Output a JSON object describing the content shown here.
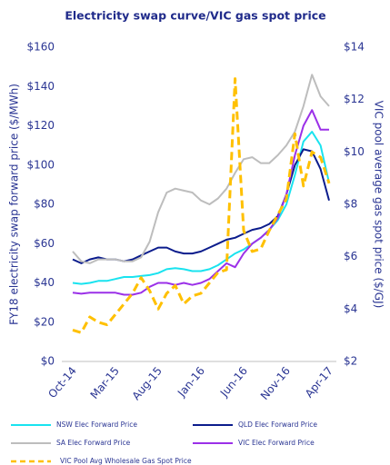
{
  "chart_data": {
    "type": "line",
    "title": "Electricity swap curve/VIC gas spot price",
    "y_label": "FY18 electricity swap forward price ($/MWh)",
    "y2_label": "VIC pool average gas spot price ($/GJ)",
    "categories": [
      "Oct-14",
      null,
      null,
      null,
      null,
      "Mar-15",
      null,
      null,
      null,
      null,
      "Aug-15",
      null,
      null,
      null,
      null,
      "Jan-16",
      null,
      null,
      null,
      null,
      "Jun-16",
      null,
      null,
      null,
      null,
      "Nov-16",
      null,
      null,
      null,
      null,
      "Apr-17"
    ],
    "ylim": [
      0,
      160
    ],
    "yticks": [
      {
        "value": 0,
        "label": "$0"
      },
      {
        "value": 20,
        "label": "$20"
      },
      {
        "value": 40,
        "label": "$40"
      },
      {
        "value": 60,
        "label": "$60"
      },
      {
        "value": 80,
        "label": "$80"
      },
      {
        "value": 100,
        "label": "$100"
      },
      {
        "value": 120,
        "label": "$120"
      },
      {
        "value": 140,
        "label": "$140"
      },
      {
        "value": 160,
        "label": "$160"
      }
    ],
    "y2lim": [
      2,
      14
    ],
    "y2ticks": [
      {
        "value": 2,
        "label": "$2"
      },
      {
        "value": 4,
        "label": "$4"
      },
      {
        "value": 6,
        "label": "$6"
      },
      {
        "value": 8,
        "label": "$8"
      },
      {
        "value": 10,
        "label": "$10"
      },
      {
        "value": 12,
        "label": "$12"
      },
      {
        "value": 14,
        "label": "$14"
      }
    ],
    "series": [
      {
        "name": "NSW Elec Forward Price",
        "color": "#19e3ef",
        "values": [
          40,
          39.5,
          40,
          41,
          41,
          42,
          43,
          43,
          43.5,
          44,
          45,
          47,
          47.5,
          47,
          46,
          46,
          47,
          49,
          52,
          55,
          57,
          60,
          63,
          67,
          72,
          80,
          95,
          112,
          117,
          110,
          91
        ]
      },
      {
        "name": "QLD Elec  Forward Price",
        "color": "#0b1c8c",
        "values": [
          52,
          50,
          52,
          53,
          52,
          52,
          51,
          52,
          54,
          56,
          58,
          58,
          56,
          55,
          55,
          56,
          58,
          60,
          62,
          63,
          65,
          67,
          68,
          70,
          74,
          85,
          100,
          108,
          107,
          98,
          82
        ]
      },
      {
        "name": "SA Elec Forward Price",
        "color": "#bdbdbd",
        "values": [
          56,
          51,
          50,
          52,
          52,
          52,
          51,
          51,
          53,
          61,
          76,
          86,
          88,
          87,
          86,
          82,
          80,
          83,
          88,
          96,
          103,
          104,
          101,
          101,
          105,
          110,
          117,
          130,
          146,
          135,
          130
        ]
      },
      {
        "name": "VIC Elec Forward Price",
        "color": "#9b30e8",
        "values": [
          35,
          34.5,
          35,
          35,
          35,
          35,
          34,
          34,
          35,
          38,
          40,
          40,
          39,
          40,
          39,
          40,
          42,
          46,
          50,
          48,
          55,
          60,
          63,
          67,
          73,
          85,
          105,
          120,
          128,
          118,
          118
        ]
      },
      {
        "name": "VIC Pool Avg Wholesale Gas Spot Price",
        "color": "#ffc000",
        "axis": "y2",
        "dash": true,
        "values": [
          3.2,
          3.1,
          3.7,
          3.5,
          3.4,
          3.8,
          4.2,
          4.6,
          5.2,
          4.7,
          4.0,
          4.6,
          4.9,
          4.2,
          4.5,
          4.6,
          5.0,
          5.4,
          5.5,
          12.8,
          7.0,
          6.2,
          6.3,
          7.0,
          7.6,
          8.2,
          10.7,
          8.7,
          10.0,
          9.8,
          8.8
        ]
      }
    ]
  }
}
